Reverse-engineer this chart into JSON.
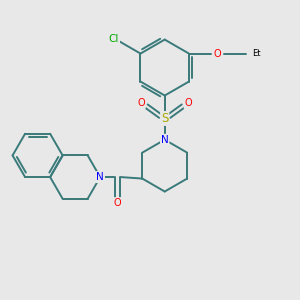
{
  "bg_color": "#e8e8e8",
  "bond_color": "#3a7a7a",
  "n_color": "#0000ff",
  "o_color": "#ff0000",
  "s_color": "#aaaa00",
  "cl_color": "#00aa00",
  "lw": 1.4,
  "figsize": [
    3.0,
    3.0
  ],
  "dpi": 100,
  "xlim": [
    0,
    10
  ],
  "ylim": [
    0,
    10
  ],
  "font_size": 7.0,
  "s_font_size": 8.5
}
